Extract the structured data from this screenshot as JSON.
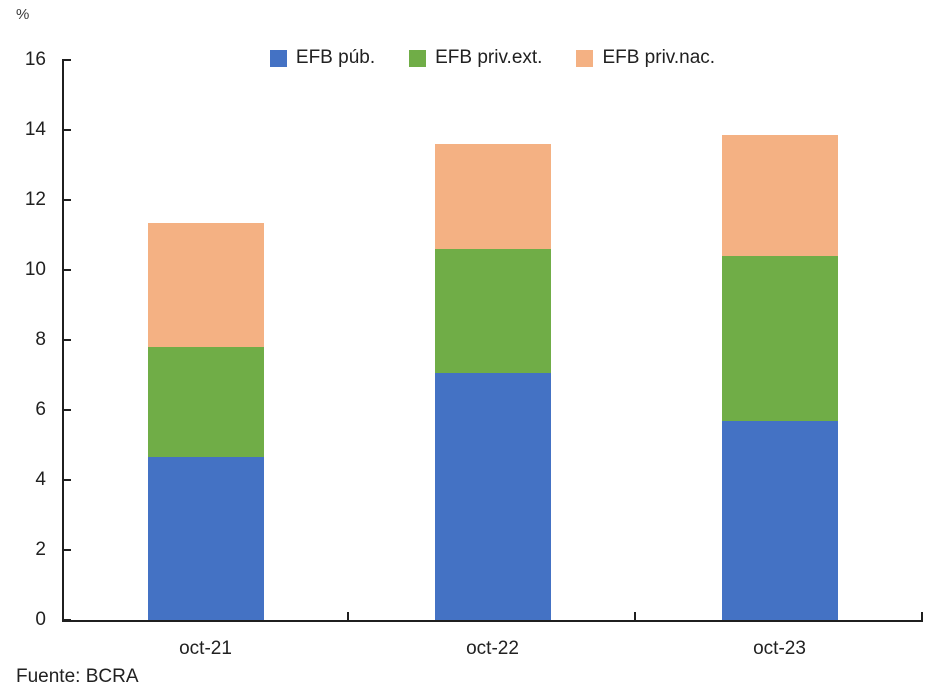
{
  "chart_data": {
    "type": "bar",
    "stacked": true,
    "title": "",
    "unit_label": "%",
    "categories": [
      "oct-21",
      "oct-22",
      "oct-23"
    ],
    "series": [
      {
        "name": "EFB púb.",
        "color": "#4472C4",
        "values": [
          4.65,
          7.05,
          5.7
        ]
      },
      {
        "name": "EFB priv.ext.",
        "color": "#70AD47",
        "values": [
          3.15,
          3.55,
          4.7
        ]
      },
      {
        "name": "EFB priv.nac.",
        "color": "#F4B183",
        "values": [
          3.55,
          3.0,
          3.45
        ]
      }
    ],
    "ylim": [
      0,
      16
    ],
    "yticks": [
      0,
      2,
      4,
      6,
      8,
      10,
      12,
      14,
      16
    ],
    "grid": false,
    "legend_position": "top"
  },
  "source": {
    "text": "Fuente: BCRA"
  },
  "colors": {
    "axis": "#1f1f1f",
    "text": "#212121",
    "background": "#ffffff"
  }
}
